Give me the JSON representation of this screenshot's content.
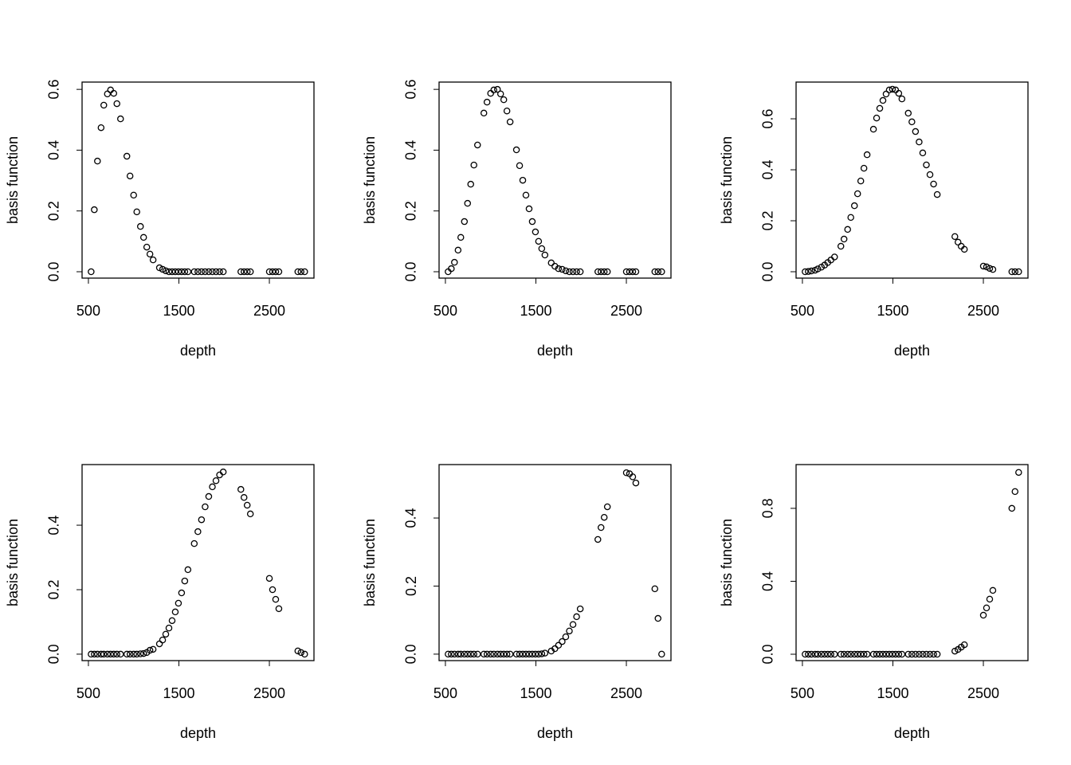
{
  "chart_data": [
    {
      "type": "scatter",
      "xlabel": "depth",
      "ylabel": "basis function",
      "x": [
        530,
        565,
        600,
        640,
        670,
        710,
        745,
        780,
        815,
        855,
        925,
        960,
        1000,
        1035,
        1075,
        1110,
        1145,
        1180,
        1215,
        1285,
        1320,
        1355,
        1390,
        1425,
        1460,
        1495,
        1530,
        1565,
        1600,
        1670,
        1710,
        1750,
        1790,
        1830,
        1870,
        1910,
        1950,
        1990,
        2185,
        2220,
        2255,
        2290,
        2500,
        2535,
        2570,
        2605,
        2815,
        2850,
        2890
      ],
      "values": [
        0,
        0.204,
        0.364,
        0.474,
        0.548,
        0.585,
        0.598,
        0.587,
        0.553,
        0.503,
        0.38,
        0.315,
        0.252,
        0.197,
        0.149,
        0.113,
        0.081,
        0.058,
        0.039,
        0.013,
        0.008,
        0.003,
        0,
        0,
        0,
        0,
        0,
        0,
        0,
        0,
        0,
        0,
        0,
        0,
        0,
        0,
        0,
        0,
        0,
        0,
        0,
        0,
        0,
        0,
        0,
        0,
        0,
        0,
        0
      ],
      "xlim": [
        430,
        2993
      ],
      "ylim": [
        -0.021,
        0.624
      ],
      "xticks": [
        500,
        1500,
        2500
      ],
      "yticks": [
        {
          "value": 0,
          "label": "0.0"
        },
        0.2,
        0.4,
        0.6
      ],
      "color": "#000000"
    },
    {
      "type": "scatter",
      "xlabel": "depth",
      "ylabel": "basis function",
      "x": [
        530,
        565,
        600,
        640,
        670,
        710,
        745,
        780,
        815,
        855,
        925,
        960,
        1000,
        1035,
        1075,
        1110,
        1145,
        1180,
        1215,
        1285,
        1320,
        1355,
        1390,
        1425,
        1460,
        1495,
        1530,
        1565,
        1600,
        1670,
        1710,
        1750,
        1790,
        1830,
        1870,
        1910,
        1950,
        1990,
        2185,
        2220,
        2255,
        2290,
        2500,
        2535,
        2570,
        2605,
        2815,
        2850,
        2890
      ],
      "values": [
        0,
        0.01,
        0.031,
        0.071,
        0.113,
        0.165,
        0.225,
        0.288,
        0.351,
        0.417,
        0.522,
        0.558,
        0.587,
        0.598,
        0.6,
        0.585,
        0.566,
        0.529,
        0.493,
        0.401,
        0.349,
        0.301,
        0.252,
        0.207,
        0.165,
        0.131,
        0.1,
        0.076,
        0.055,
        0.029,
        0.018,
        0.01,
        0.008,
        0.003,
        0,
        0,
        0,
        0,
        0,
        0,
        0,
        0,
        0,
        0,
        0,
        0,
        0,
        0,
        0
      ],
      "xlim": [
        430,
        2993
      ],
      "ylim": [
        -0.021,
        0.624
      ],
      "xticks": [
        500,
        1500,
        2500
      ],
      "yticks": [
        {
          "value": 0,
          "label": "0.0"
        },
        0.2,
        0.4,
        0.6
      ],
      "color": "#000000"
    },
    {
      "type": "scatter",
      "xlabel": "depth",
      "ylabel": "basis function",
      "x": [
        530,
        565,
        600,
        640,
        670,
        710,
        745,
        780,
        815,
        855,
        925,
        960,
        1000,
        1035,
        1075,
        1110,
        1145,
        1180,
        1215,
        1285,
        1320,
        1355,
        1390,
        1425,
        1460,
        1495,
        1530,
        1565,
        1600,
        1670,
        1710,
        1750,
        1790,
        1830,
        1870,
        1910,
        1950,
        1990,
        2185,
        2220,
        2255,
        2290,
        2500,
        2535,
        2570,
        2605,
        2815,
        2850,
        2890
      ],
      "values": [
        0,
        0.001,
        0.003,
        0.006,
        0.011,
        0.018,
        0.026,
        0.036,
        0.046,
        0.058,
        0.1,
        0.128,
        0.166,
        0.213,
        0.259,
        0.306,
        0.356,
        0.406,
        0.459,
        0.559,
        0.603,
        0.641,
        0.672,
        0.697,
        0.713,
        0.716,
        0.713,
        0.7,
        0.678,
        0.622,
        0.588,
        0.55,
        0.509,
        0.466,
        0.419,
        0.381,
        0.344,
        0.303,
        0.138,
        0.116,
        0.1,
        0.088,
        0.022,
        0.019,
        0.013,
        0.009,
        0,
        0,
        0
      ],
      "xlim": [
        430,
        2993
      ],
      "ylim": [
        -0.025,
        0.744
      ],
      "xticks": [
        500,
        1500,
        2500
      ],
      "yticks": [
        {
          "value": 0,
          "label": "0.0"
        },
        0.2,
        0.4,
        0.6
      ],
      "color": "#000000"
    },
    {
      "type": "scatter",
      "xlabel": "depth",
      "ylabel": "basis function",
      "x": [
        530,
        565,
        600,
        640,
        670,
        710,
        745,
        780,
        815,
        855,
        925,
        960,
        1000,
        1035,
        1075,
        1110,
        1145,
        1180,
        1215,
        1285,
        1320,
        1355,
        1390,
        1425,
        1460,
        1495,
        1530,
        1565,
        1600,
        1670,
        1710,
        1750,
        1790,
        1830,
        1870,
        1910,
        1950,
        1990,
        2185,
        2220,
        2255,
        2290,
        2500,
        2535,
        2570,
        2605,
        2815,
        2850,
        2890
      ],
      "values": [
        0,
        0,
        0,
        0,
        0,
        0,
        0,
        0,
        0,
        0,
        0,
        0,
        0,
        0,
        0.001,
        0.002,
        0.005,
        0.012,
        0.015,
        0.032,
        0.044,
        0.062,
        0.081,
        0.104,
        0.131,
        0.158,
        0.19,
        0.227,
        0.262,
        0.343,
        0.38,
        0.417,
        0.457,
        0.489,
        0.519,
        0.538,
        0.556,
        0.565,
        0.511,
        0.486,
        0.462,
        0.435,
        0.235,
        0.2,
        0.17,
        0.141,
        0.01,
        0.005,
        0
      ],
      "xlim": [
        430,
        2993
      ],
      "ylim": [
        -0.02,
        0.588
      ],
      "xticks": [
        500,
        1500,
        2500
      ],
      "yticks": [
        {
          "value": 0,
          "label": "0.0"
        },
        0.2,
        0.4
      ],
      "color": "#000000"
    },
    {
      "type": "scatter",
      "xlabel": "depth",
      "ylabel": "basis function",
      "x": [
        530,
        565,
        600,
        640,
        670,
        710,
        745,
        780,
        815,
        855,
        925,
        960,
        1000,
        1035,
        1075,
        1110,
        1145,
        1180,
        1215,
        1285,
        1320,
        1355,
        1390,
        1425,
        1460,
        1495,
        1530,
        1565,
        1600,
        1670,
        1710,
        1750,
        1790,
        1830,
        1870,
        1910,
        1950,
        1990,
        2185,
        2220,
        2255,
        2290,
        2500,
        2535,
        2570,
        2605,
        2815,
        2850,
        2890
      ],
      "values": [
        0,
        0,
        0,
        0,
        0,
        0,
        0,
        0,
        0,
        0,
        0,
        0,
        0,
        0,
        0,
        0,
        0,
        0,
        0,
        0,
        0,
        0,
        0,
        0,
        0,
        0,
        0,
        0.001,
        0.003,
        0.009,
        0.016,
        0.026,
        0.037,
        0.051,
        0.068,
        0.087,
        0.11,
        0.133,
        0.337,
        0.372,
        0.402,
        0.433,
        0.533,
        0.53,
        0.521,
        0.503,
        0.192,
        0.105,
        0
      ],
      "xlim": [
        430,
        2993
      ],
      "ylim": [
        -0.019,
        0.557
      ],
      "xticks": [
        500,
        1500,
        2500
      ],
      "yticks": [
        {
          "value": 0,
          "label": "0.0"
        },
        0.2,
        0.4
      ],
      "color": "#000000"
    },
    {
      "type": "scatter",
      "xlabel": "depth",
      "ylabel": "basis function",
      "x": [
        530,
        565,
        600,
        640,
        670,
        710,
        745,
        780,
        815,
        855,
        925,
        960,
        1000,
        1035,
        1075,
        1110,
        1145,
        1180,
        1215,
        1285,
        1320,
        1355,
        1390,
        1425,
        1460,
        1495,
        1530,
        1565,
        1600,
        1670,
        1710,
        1750,
        1790,
        1830,
        1870,
        1910,
        1950,
        1990,
        2185,
        2220,
        2255,
        2290,
        2500,
        2535,
        2570,
        2605,
        2815,
        2850,
        2890
      ],
      "values": [
        0,
        0,
        0,
        0,
        0,
        0,
        0,
        0,
        0,
        0,
        0,
        0,
        0,
        0,
        0,
        0,
        0,
        0,
        0,
        0,
        0,
        0,
        0,
        0,
        0,
        0,
        0,
        0,
        0,
        0,
        0,
        0,
        0,
        0,
        0,
        0,
        0,
        0,
        0.017,
        0.026,
        0.039,
        0.052,
        0.214,
        0.254,
        0.302,
        0.35,
        0.8,
        0.892,
        0.997
      ],
      "xlim": [
        430,
        2993
      ],
      "ylim": [
        -0.035,
        1.04
      ],
      "xticks": [
        500,
        1500,
        2500
      ],
      "yticks": [
        {
          "value": 0,
          "label": "0.0"
        },
        0.4,
        0.8
      ],
      "color": "#000000"
    }
  ]
}
